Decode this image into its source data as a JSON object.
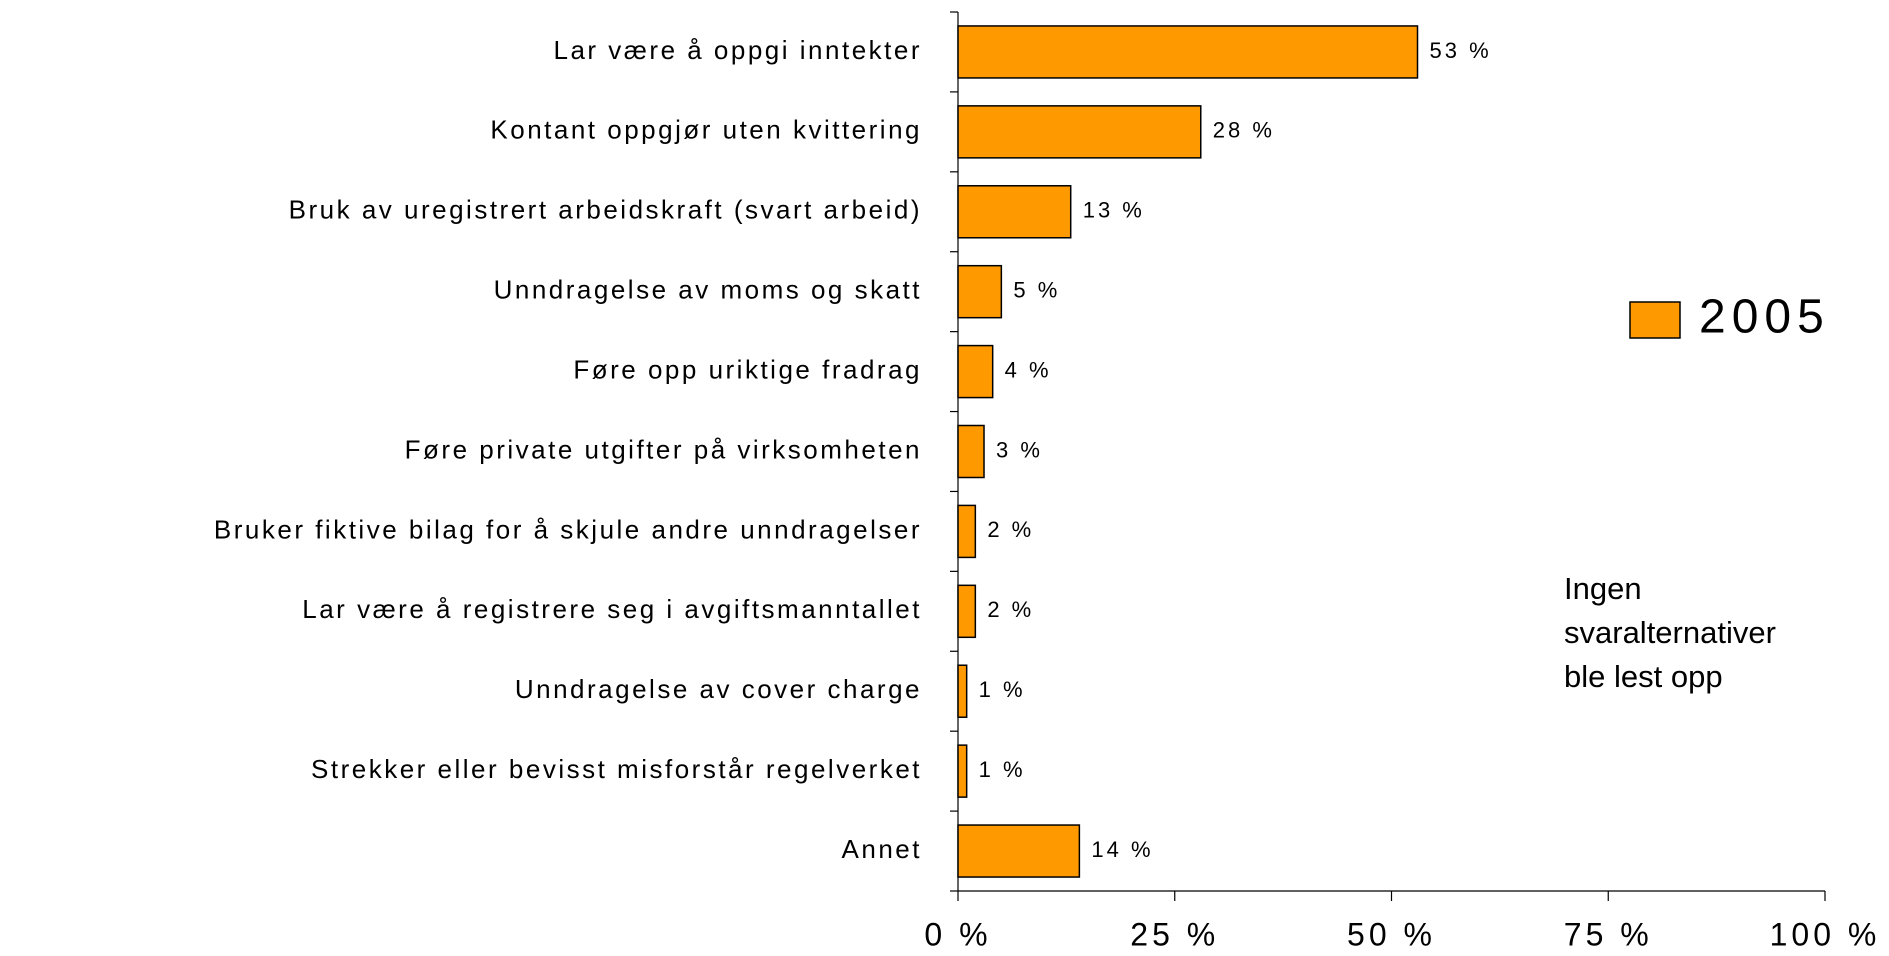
{
  "chart_data": {
    "type": "barh",
    "categories": [
      "Lar være å oppgi inntekter",
      "Kontant oppgjør uten kvittering",
      "Bruk av uregistrert arbeidskraft (svart arbeid)",
      "Unndragelse av moms og skatt",
      "Føre opp uriktige fradrag",
      "Føre private utgifter på virksomheten",
      "Bruker fiktive bilag for å skjule andre unndragelser",
      "Lar være å registrere seg i avgiftsmanntallet",
      "Unndragelse av cover charge",
      "Strekker eller bevisst misforstår regelverket",
      "Annet"
    ],
    "series": [
      {
        "name": "2005",
        "color": "#ff9900",
        "values": [
          53,
          28,
          13,
          5,
          4,
          3,
          2,
          2,
          1,
          1,
          14
        ],
        "value_labels": [
          "53 %",
          "28 %",
          "13 %",
          "5 %",
          "4 %",
          "3 %",
          "2 %",
          "2 %",
          "1 %",
          "1 %",
          "14 %"
        ]
      }
    ],
    "xlim": [
      0,
      100
    ],
    "xticks": [
      {
        "value": 0,
        "label": "0 %"
      },
      {
        "value": 25,
        "label": "25 %"
      },
      {
        "value": 50,
        "label": "50 %"
      },
      {
        "value": 75,
        "label": "75 %"
      },
      {
        "value": 100,
        "label": "100 %"
      }
    ],
    "legend": "right",
    "annotation": [
      "Ingen",
      "svaralternativer",
      "ble lest opp"
    ]
  }
}
